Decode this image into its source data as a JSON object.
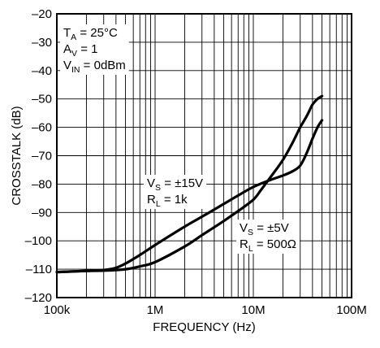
{
  "chart_data": {
    "type": "line",
    "xlabel": "FREQUENCY (Hz)",
    "ylabel": "CROSSTALK (dB)",
    "x_scale": "log",
    "xlim": [
      100000,
      100000000
    ],
    "ylim": [
      -120,
      -20
    ],
    "grid": true,
    "x_ticks": [
      {
        "value": 100000,
        "label": "100k"
      },
      {
        "value": 1000000,
        "label": "1M"
      },
      {
        "value": 10000000,
        "label": "10M"
      },
      {
        "value": 100000000,
        "label": "100M"
      }
    ],
    "y_ticks": [
      {
        "value": -20,
        "label": "–20"
      },
      {
        "value": -30,
        "label": "–30"
      },
      {
        "value": -40,
        "label": "–40"
      },
      {
        "value": -50,
        "label": "–50"
      },
      {
        "value": -60,
        "label": "–60"
      },
      {
        "value": -70,
        "label": "–70"
      },
      {
        "value": -80,
        "label": "–80"
      },
      {
        "value": -90,
        "label": "–90"
      },
      {
        "value": -100,
        "label": "–100"
      },
      {
        "value": -110,
        "label": "–110"
      },
      {
        "value": -120,
        "label": "–120"
      }
    ],
    "conditions": [
      {
        "main": "T",
        "sub": "A",
        "rest": " = 25°C"
      },
      {
        "main": "A",
        "sub": "V",
        "rest": " = 1"
      },
      {
        "main": "V",
        "sub": "IN",
        "rest": " = 0dBm"
      }
    ],
    "series": [
      {
        "annotation": [
          {
            "main": "V",
            "sub": "S",
            "rest": " = ±15V"
          },
          {
            "main": "R",
            "sub": "L",
            "rest": " = 1k"
          }
        ],
        "points": [
          [
            100000,
            -111
          ],
          [
            200000,
            -110.6
          ],
          [
            300000,
            -110.3
          ],
          [
            400000,
            -109.5
          ],
          [
            500000,
            -108
          ],
          [
            700000,
            -105
          ],
          [
            1000000,
            -101.5
          ],
          [
            2000000,
            -95
          ],
          [
            3000000,
            -91.5
          ],
          [
            5000000,
            -87
          ],
          [
            7000000,
            -84
          ],
          [
            10000000,
            -81
          ],
          [
            15000000,
            -78.5
          ],
          [
            20000000,
            -77
          ],
          [
            25000000,
            -75.5
          ],
          [
            30000000,
            -73.5
          ],
          [
            35000000,
            -69
          ],
          [
            40000000,
            -64
          ],
          [
            45000000,
            -60
          ],
          [
            50000000,
            -57.5
          ]
        ]
      },
      {
        "annotation": [
          {
            "main": "V",
            "sub": "S",
            "rest": " = ±5V"
          },
          {
            "main": "R",
            "sub": "L",
            "rest": " = 500Ω"
          }
        ],
        "points": [
          [
            100000,
            -111
          ],
          [
            200000,
            -110.6
          ],
          [
            300000,
            -110.5
          ],
          [
            500000,
            -110
          ],
          [
            700000,
            -109
          ],
          [
            1000000,
            -107.5
          ],
          [
            2000000,
            -102
          ],
          [
            3000000,
            -98
          ],
          [
            5000000,
            -93
          ],
          [
            7000000,
            -89.5
          ],
          [
            10000000,
            -85.5
          ],
          [
            12000000,
            -82
          ],
          [
            15000000,
            -77.5
          ],
          [
            20000000,
            -71.5
          ],
          [
            25000000,
            -65.5
          ],
          [
            30000000,
            -60
          ],
          [
            35000000,
            -56
          ],
          [
            40000000,
            -52
          ],
          [
            45000000,
            -50
          ],
          [
            50000000,
            -49
          ]
        ]
      }
    ]
  }
}
